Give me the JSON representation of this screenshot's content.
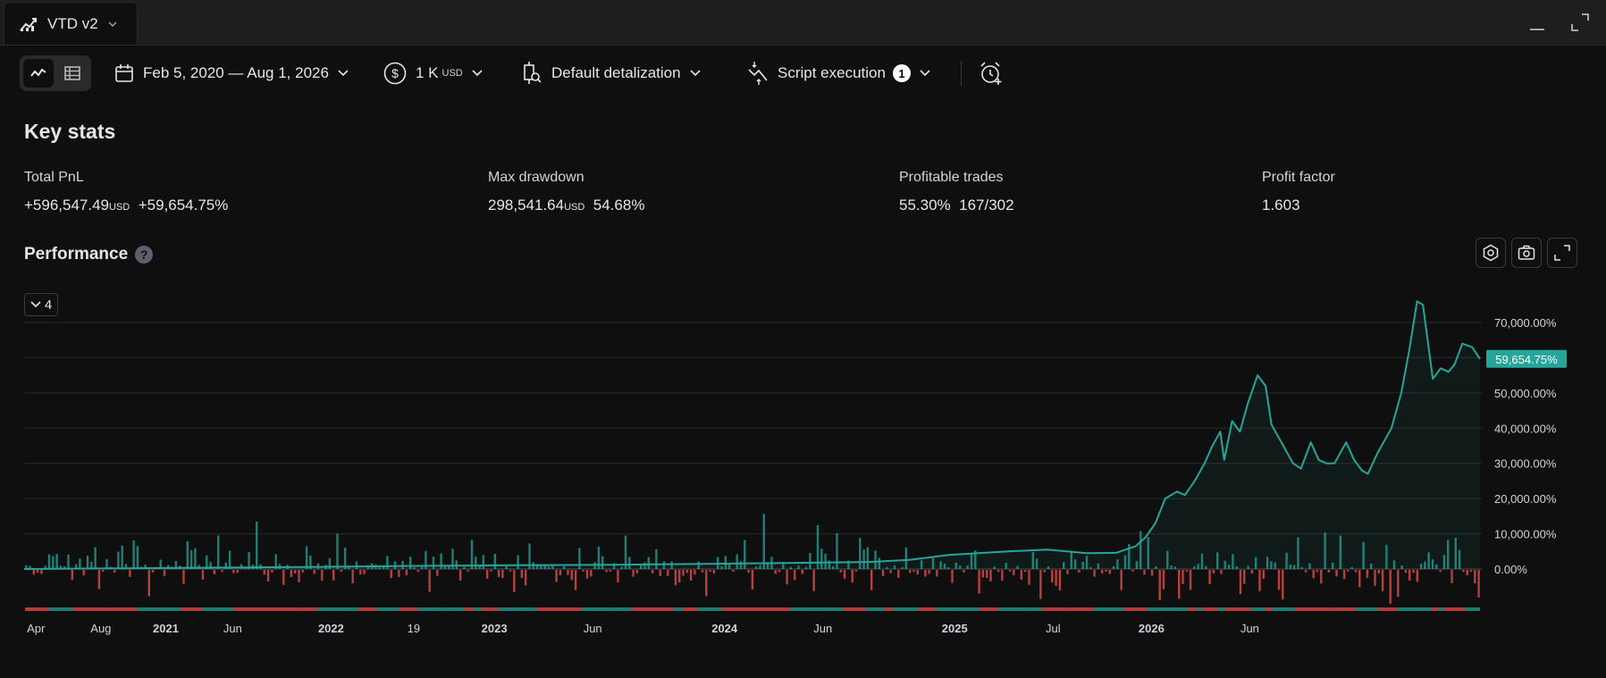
{
  "tab": {
    "title": "VTD v2",
    "icon": "strategy-chart-icon"
  },
  "window_controls": [
    "minimize-icon",
    "maximize-icon"
  ],
  "toolbar": {
    "date_range": "Feb 5, 2020 — Aug 1, 2026",
    "capital_value": "1 K",
    "capital_unit": "USD",
    "detalization": "Default detalization",
    "script_execution": "Script execution",
    "script_execution_count": "1"
  },
  "key_stats": {
    "title": "Key stats",
    "total_pnl": {
      "label": "Total PnL",
      "value": "+596,547.49",
      "unit": "USD",
      "percent": "+59,654.75%"
    },
    "max_drawdown": {
      "label": "Max drawdown",
      "value": "298,541.64",
      "unit": "USD",
      "percent": "54.68%"
    },
    "profitable_trades": {
      "label": "Profitable trades",
      "percent": "55.30%",
      "ratio": "167/302"
    },
    "profit_factor": {
      "label": "Profit factor",
      "value": "1.603"
    }
  },
  "performance": {
    "title": "Performance",
    "help": "?",
    "collapse_count": "4",
    "current_value_label": "59,654.75%"
  },
  "colors": {
    "accent_green": "#26a69a",
    "loss_red": "#ef5350",
    "background": "#0f0f0f"
  },
  "chart_data": {
    "type": "line",
    "ylim": [
      -2000,
      78000
    ],
    "y_ticks": [
      {
        "value": 70000,
        "label": "70,000.00%"
      },
      {
        "value": 60000,
        "label": "60,000.00%"
      },
      {
        "value": 50000,
        "label": "50,000.00%"
      },
      {
        "value": 40000,
        "label": "40,000.00%"
      },
      {
        "value": 30000,
        "label": "30,000.00%"
      },
      {
        "value": 20000,
        "label": "20,000.00%"
      },
      {
        "value": 10000,
        "label": "10,000.00%"
      },
      {
        "value": 0,
        "label": "0.00%"
      }
    ],
    "x_ticks": [
      {
        "t": 0.06,
        "label": "Apr",
        "bold": false
      },
      {
        "t": 0.39,
        "label": "Aug",
        "bold": false
      },
      {
        "t": 0.72,
        "label": "2021",
        "bold": true
      },
      {
        "t": 1.06,
        "label": "Jun",
        "bold": false
      },
      {
        "t": 1.56,
        "label": "2022",
        "bold": true
      },
      {
        "t": 1.98,
        "label": "19",
        "bold": false
      },
      {
        "t": 2.39,
        "label": "2023",
        "bold": true
      },
      {
        "t": 2.89,
        "label": "Jun",
        "bold": false
      },
      {
        "t": 3.56,
        "label": "2024",
        "bold": true
      },
      {
        "t": 4.06,
        "label": "Jun",
        "bold": false
      },
      {
        "t": 4.73,
        "label": "2025",
        "bold": true
      },
      {
        "t": 5.23,
        "label": "Jul",
        "bold": false
      },
      {
        "t": 5.73,
        "label": "2026",
        "bold": true
      },
      {
        "t": 6.23,
        "label": "Jun",
        "bold": false
      }
    ],
    "series": [
      {
        "values": [
          [
            0.0,
            0
          ],
          [
            0.5,
            200
          ],
          [
            1.0,
            400
          ],
          [
            1.5,
            600
          ],
          [
            2.0,
            900
          ],
          [
            2.5,
            1100
          ],
          [
            3.0,
            1200
          ],
          [
            3.5,
            1500
          ],
          [
            4.0,
            1800
          ],
          [
            4.3,
            2000
          ],
          [
            4.5,
            2600
          ],
          [
            4.7,
            4000
          ],
          [
            4.85,
            4500
          ],
          [
            5.0,
            5000
          ],
          [
            5.2,
            5500
          ],
          [
            5.4,
            4500
          ],
          [
            5.55,
            4600
          ],
          [
            5.65,
            6500
          ],
          [
            5.7,
            9000
          ],
          [
            5.75,
            13000
          ],
          [
            5.8,
            20000
          ],
          [
            5.86,
            22000
          ],
          [
            5.9,
            21000
          ],
          [
            5.95,
            25000
          ],
          [
            6.0,
            30000
          ],
          [
            6.04,
            35000
          ],
          [
            6.08,
            39000
          ],
          [
            6.1,
            31000
          ],
          [
            6.14,
            42000
          ],
          [
            6.18,
            39000
          ],
          [
            6.22,
            47000
          ],
          [
            6.27,
            55000
          ],
          [
            6.31,
            52000
          ],
          [
            6.34,
            41000
          ],
          [
            6.4,
            35000
          ],
          [
            6.45,
            30000
          ],
          [
            6.49,
            28500
          ],
          [
            6.54,
            36000
          ],
          [
            6.58,
            31000
          ],
          [
            6.62,
            30000
          ],
          [
            6.66,
            30000
          ],
          [
            6.72,
            36000
          ],
          [
            6.76,
            31000
          ],
          [
            6.8,
            28000
          ],
          [
            6.83,
            27000
          ],
          [
            6.88,
            33000
          ],
          [
            6.95,
            40000
          ],
          [
            7.0,
            50000
          ],
          [
            7.04,
            62000
          ],
          [
            7.08,
            76000
          ],
          [
            7.11,
            75000
          ],
          [
            7.16,
            54000
          ],
          [
            7.2,
            57000
          ],
          [
            7.24,
            56000
          ],
          [
            7.27,
            58000
          ],
          [
            7.31,
            64000
          ],
          [
            7.36,
            63000
          ],
          [
            7.4,
            59654.75
          ]
        ]
      }
    ]
  }
}
